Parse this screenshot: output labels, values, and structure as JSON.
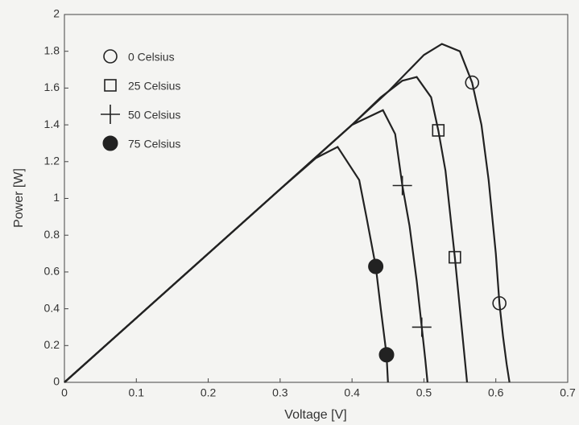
{
  "chart_data": {
    "type": "line",
    "x_label": "Voltage [V]",
    "y_label": "Power [W]",
    "xlim": [
      0,
      0.7
    ],
    "xticks": [
      0,
      0.1,
      0.2,
      0.3,
      0.4,
      0.5,
      0.6,
      0.7
    ],
    "ylim": [
      0,
      2
    ],
    "yticks": [
      0,
      0.2,
      0.4,
      0.6,
      0.8,
      1,
      1.2,
      1.4,
      1.6,
      1.8,
      2
    ],
    "grid": false,
    "legend": "upper-left",
    "series": [
      {
        "name": "0  Celsius",
        "color": "#222222",
        "marker": "circle",
        "x": [
          0,
          0.1,
          0.2,
          0.3,
          0.4,
          0.45,
          0.48,
          0.5,
          0.525,
          0.55,
          0.567,
          0.58,
          0.59,
          0.6,
          0.605,
          0.61,
          0.615,
          0.619
        ],
        "values": [
          0,
          0.35,
          0.7,
          1.05,
          1.4,
          1.58,
          1.7,
          1.78,
          1.84,
          1.8,
          1.63,
          1.4,
          1.1,
          0.7,
          0.43,
          0.25,
          0.1,
          0
        ],
        "marker_x": [
          0.567,
          0.605
        ],
        "marker_values": [
          1.63,
          0.43
        ]
      },
      {
        "name": "25 Celsius",
        "color": "#222222",
        "marker": "square",
        "x": [
          0,
          0.1,
          0.2,
          0.3,
          0.4,
          0.44,
          0.47,
          0.49,
          0.51,
          0.52,
          0.53,
          0.543,
          0.55,
          0.555,
          0.56
        ],
        "values": [
          0,
          0.35,
          0.7,
          1.05,
          1.4,
          1.55,
          1.64,
          1.66,
          1.55,
          1.37,
          1.15,
          0.68,
          0.4,
          0.2,
          0
        ],
        "marker_x": [
          0.52,
          0.543
        ],
        "marker_values": [
          1.37,
          0.68
        ]
      },
      {
        "name": "50 Celsius",
        "color": "#222222",
        "marker": "plus",
        "x": [
          0,
          0.1,
          0.2,
          0.3,
          0.4,
          0.443,
          0.46,
          0.47,
          0.48,
          0.49,
          0.497,
          0.502,
          0.505
        ],
        "values": [
          0,
          0.35,
          0.7,
          1.05,
          1.4,
          1.48,
          1.35,
          1.07,
          0.85,
          0.55,
          0.3,
          0.12,
          0
        ],
        "marker_x": [
          0.47,
          0.497
        ],
        "marker_values": [
          1.07,
          0.3
        ]
      },
      {
        "name": "75 Celsius",
        "color": "#222222",
        "marker": "filled-circle",
        "x": [
          0,
          0.1,
          0.2,
          0.3,
          0.35,
          0.38,
          0.41,
          0.42,
          0.433,
          0.44,
          0.448,
          0.45
        ],
        "values": [
          0,
          0.35,
          0.7,
          1.05,
          1.22,
          1.28,
          1.1,
          0.9,
          0.63,
          0.4,
          0.15,
          0
        ],
        "marker_x": [
          0.433,
          0.448
        ],
        "marker_values": [
          0.63,
          0.15
        ]
      }
    ]
  }
}
